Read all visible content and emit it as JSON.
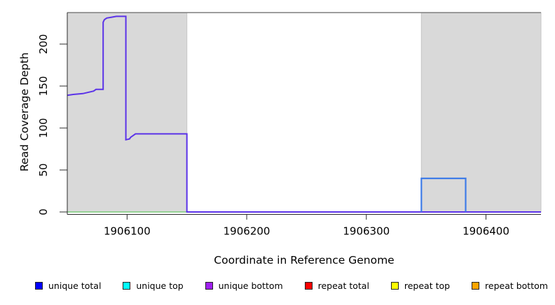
{
  "chart_data": {
    "type": "line",
    "title": "",
    "xlabel": "Coordinate in Reference Genome",
    "ylabel": "Read Coverage Depth",
    "xlim": [
      1906050,
      1906446
    ],
    "ylim": [
      0,
      237.5
    ],
    "x_ticks": [
      1906100,
      1906200,
      1906300,
      1906400
    ],
    "y_ticks": [
      0,
      50,
      100,
      150,
      200
    ],
    "grid": false,
    "legend_position": "bottom",
    "background_regions": [
      {
        "name": "left-shaded-region",
        "x0": 1906050,
        "x1": 1906150,
        "fill": "#d9d9d9",
        "stroke": "#c6c6c6"
      },
      {
        "name": "right-shaded-region",
        "x0": 1906346,
        "x1": 1906446,
        "fill": "#d9d9d9",
        "stroke": "#c6c6c6"
      }
    ],
    "top_boundary_line": {
      "value": 237.5,
      "color": "#7f7f7f",
      "width": 1.6
    },
    "series": [
      {
        "name": "repeat-zero-baseline",
        "color": "#79c879",
        "width": 1.6,
        "points": [
          [
            1906050,
            0
          ],
          [
            1906150,
            0
          ]
        ]
      },
      {
        "name": "repeat-total",
        "color": "#e03030",
        "width": 1.8,
        "points": [
          [
            1906346,
            0
          ],
          [
            1906383,
            0
          ]
        ]
      },
      {
        "name": "unique-coverage-main",
        "color": "#5b33e8",
        "width": 2,
        "points": [
          [
            1906050,
            139
          ],
          [
            1906055,
            140
          ],
          [
            1906063,
            141
          ],
          [
            1906072,
            144
          ],
          [
            1906074,
            146
          ],
          [
            1906080,
            146
          ],
          [
            1906080,
            226
          ],
          [
            1906081,
            229
          ],
          [
            1906083,
            231
          ],
          [
            1906087,
            232
          ],
          [
            1906091,
            233
          ],
          [
            1906099,
            233
          ],
          [
            1906099,
            86
          ],
          [
            1906102,
            87
          ],
          [
            1906103,
            89
          ],
          [
            1906105,
            91
          ],
          [
            1906107,
            93
          ],
          [
            1906150,
            93
          ],
          [
            1906150,
            0
          ],
          [
            1906446,
            0
          ]
        ]
      },
      {
        "name": "unique-top-coverage-box",
        "color": "#3f7ce8",
        "width": 2.2,
        "points": [
          [
            1906346,
            0
          ],
          [
            1906346,
            40
          ],
          [
            1906383,
            40
          ],
          [
            1906383,
            0
          ]
        ]
      }
    ],
    "legend": [
      {
        "label": "unique total",
        "color": "#0000ff"
      },
      {
        "label": "unique top",
        "color": "#00ffff"
      },
      {
        "label": "unique bottom",
        "color": "#a020f0"
      },
      {
        "label": "repeat total",
        "color": "#ff0000"
      },
      {
        "label": "repeat top",
        "color": "#ffff00"
      },
      {
        "label": "repeat bottom",
        "color": "#ffa500"
      }
    ],
    "axis_color": "#2b2b2b"
  }
}
